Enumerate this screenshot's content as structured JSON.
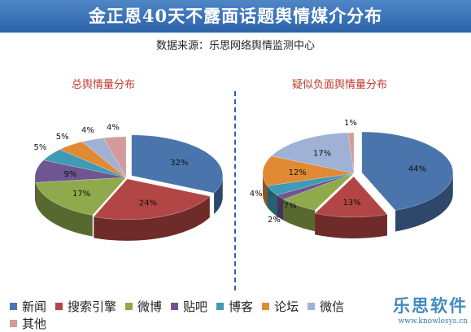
{
  "header": {
    "title": "金正恩40天不露面话题舆情媒介分布",
    "source": "数据来源：乐思网络舆情监测中心"
  },
  "colors": {
    "header_bg": "#2c63a8",
    "title_red": "#c0392b",
    "series": [
      "#4a74ac",
      "#b24644",
      "#8eaa4c",
      "#6f5591",
      "#3e9bb6",
      "#e08a35",
      "#9fb2d5",
      "#d49b9a"
    ]
  },
  "legend": [
    "新闻",
    "搜索引擎",
    "微博",
    "贴吧",
    "博客",
    "论坛",
    "微信",
    "其他"
  ],
  "chart_data": [
    {
      "type": "pie",
      "title": "总舆情量分布",
      "labels": [
        "新闻",
        "搜索引擎",
        "微博",
        "贴吧",
        "博客",
        "论坛",
        "微信",
        "其他"
      ],
      "values": [
        32,
        24,
        17,
        9,
        5,
        5,
        4,
        4
      ],
      "data_labels": [
        "32%",
        "24%",
        "17%",
        "9%",
        "5%",
        "5%",
        "4%",
        "4%"
      ]
    },
    {
      "type": "pie",
      "title": "疑似负面舆情量分布",
      "labels": [
        "新闻",
        "搜索引擎",
        "微博",
        "贴吧",
        "博客",
        "论坛",
        "微信",
        "其他"
      ],
      "values": [
        44,
        13,
        7,
        2,
        4,
        12,
        17,
        1
      ],
      "data_labels": [
        "44%",
        "13%",
        "7%",
        "2%",
        "4%",
        "12%",
        "17%",
        "1%"
      ]
    }
  ],
  "watermark": {
    "brand": "乐思软件",
    "url": "www.knowlesys.cn"
  }
}
